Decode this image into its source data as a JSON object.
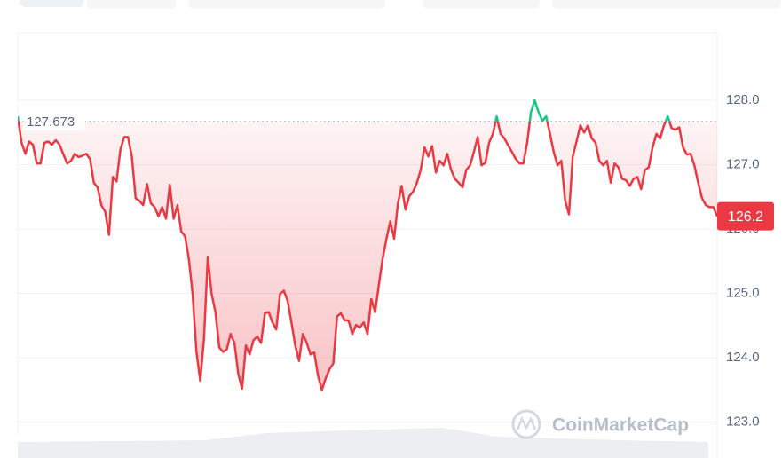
{
  "chart_data": {
    "type": "line",
    "series": [
      {
        "name": null,
        "color": "#ea3943",
        "above_color": "#16c784",
        "values": [
          127.75,
          127.34,
          127.17,
          127.36,
          127.31,
          127.02,
          127.02,
          127.34,
          127.36,
          127.31,
          127.38,
          127.31,
          127.16,
          127.02,
          127.06,
          127.17,
          127.12,
          127.14,
          127.17,
          127.09,
          126.72,
          126.65,
          126.37,
          126.27,
          125.91,
          126.81,
          126.74,
          127.23,
          127.43,
          127.43,
          127.13,
          126.48,
          126.44,
          126.37,
          126.7,
          126.4,
          126.34,
          126.2,
          126.34,
          126.16,
          126.69,
          126.16,
          126.37,
          125.96,
          125.89,
          125.54,
          124.99,
          124.09,
          123.64,
          124.3,
          125.57,
          124.99,
          124.71,
          124.16,
          124.09,
          124.13,
          124.37,
          124.23,
          123.75,
          123.52,
          124.19,
          124.05,
          124.27,
          124.33,
          124.23,
          124.69,
          124.71,
          124.55,
          124.44,
          124.99,
          125.04,
          124.88,
          124.55,
          124.19,
          123.95,
          124.37,
          124.23,
          124.05,
          124.08,
          123.72,
          123.5,
          123.68,
          123.82,
          123.91,
          124.64,
          124.69,
          124.58,
          124.58,
          124.37,
          124.51,
          124.47,
          124.55,
          124.37,
          124.91,
          124.71,
          125.13,
          125.54,
          125.85,
          126.12,
          125.85,
          126.4,
          126.67,
          126.3,
          126.51,
          126.58,
          126.72,
          126.92,
          127.27,
          127.13,
          127.29,
          126.88,
          127.06,
          126.99,
          127.17,
          126.92,
          126.78,
          126.72,
          126.65,
          126.92,
          126.99,
          127.2,
          127.43,
          126.99,
          127.03,
          127.34,
          127.48,
          127.75,
          127.48,
          127.41,
          127.3,
          127.2,
          127.09,
          127.02,
          127.02,
          127.34,
          127.82,
          128.0,
          127.82,
          127.68,
          127.75,
          127.48,
          127.2,
          126.99,
          127.06,
          126.44,
          126.23,
          127.13,
          127.36,
          127.61,
          127.5,
          127.61,
          127.41,
          127.34,
          127.06,
          126.99,
          127.06,
          126.72,
          127.02,
          126.96,
          126.78,
          126.76,
          126.67,
          126.78,
          126.81,
          126.62,
          126.92,
          126.96,
          127.27,
          127.48,
          127.41,
          127.61,
          127.75,
          127.57,
          127.54,
          127.58,
          127.27,
          127.16,
          127.17,
          126.99,
          126.72,
          126.48,
          126.37,
          126.34,
          126.34,
          126.2
        ]
      }
    ],
    "reference_value": 127.673,
    "ylim": [
      122.8,
      129.05
    ],
    "yticks": [
      {
        "value": 123,
        "label": "123.0"
      },
      {
        "value": 124,
        "label": "124.0"
      },
      {
        "value": 125,
        "label": "125.0"
      },
      {
        "value": 126,
        "label": "126.0"
      },
      {
        "value": 127,
        "label": "127.0"
      },
      {
        "value": 128,
        "label": "128.0"
      }
    ],
    "grid": true,
    "watermark": "CoinMarketCap"
  }
}
